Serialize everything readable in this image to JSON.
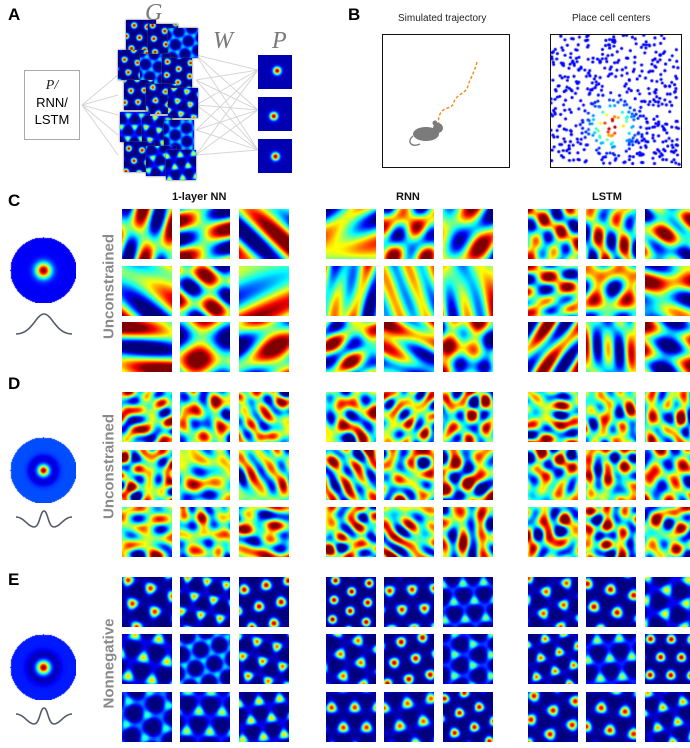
{
  "panels": {
    "A": {
      "letter": "A",
      "input_box": {
        "line1": "P/",
        "line2": "RNN/",
        "line3": "LSTM"
      },
      "label_G": "G",
      "label_W": "W",
      "label_P": "P"
    },
    "B": {
      "letter": "B",
      "title_left": "Simulated trajectory",
      "title_right": "Place cell centers"
    },
    "C": {
      "letter": "C",
      "row_label": "Unconstrained"
    },
    "D": {
      "letter": "D",
      "row_label": "Unconstrained"
    },
    "E": {
      "letter": "E",
      "row_label": "Nonnegative"
    }
  },
  "column_headers": {
    "col1": "1-layer NN",
    "col2": "RNN",
    "col3": "LSTM"
  },
  "colors": {
    "jet_low": "#00007f",
    "jet_high": "#7f0000",
    "box_border": "#aaaaaa",
    "trajectory": "#f08a1c"
  }
}
